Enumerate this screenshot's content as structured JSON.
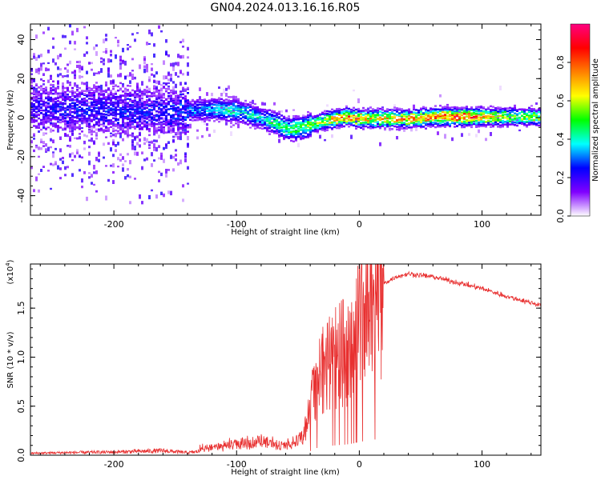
{
  "title": "GN04.2024.013.16.16.R05",
  "chart_data": [
    {
      "type": "heatmap",
      "xlabel": "Height of straight line (km)",
      "ylabel": "Frequency (Hz)",
      "xlim": [
        -268,
        148
      ],
      "ylim": [
        -50,
        48
      ],
      "xticks": [
        -200,
        -100,
        0,
        100
      ],
      "xtick_labels": [
        "-200",
        "-100",
        "0",
        "100"
      ],
      "yticks": [
        -40,
        -20,
        0,
        20,
        40
      ],
      "ytick_labels": [
        "-40",
        "-20",
        "0",
        "20",
        "40"
      ],
      "trace": {
        "x": [
          -268,
          -240,
          -200,
          -160,
          -140,
          -120,
          -100,
          -80,
          -70,
          -60,
          -50,
          -40,
          -30,
          -20,
          -10,
          0,
          20,
          40,
          60,
          80,
          100,
          120,
          148
        ],
        "center_freq": [
          6,
          6,
          5,
          4,
          4,
          5,
          4,
          0,
          -2,
          -5,
          -5,
          -3,
          -1,
          0,
          1,
          0,
          0,
          0,
          1,
          1,
          1,
          1,
          1
        ],
        "amplitude": [
          0.25,
          0.3,
          0.3,
          0.3,
          0.35,
          0.45,
          0.5,
          0.45,
          0.55,
          0.6,
          0.6,
          0.65,
          0.7,
          0.85,
          0.9,
          0.85,
          0.8,
          0.85,
          0.95,
          0.98,
          0.9,
          0.7,
          0.65
        ]
      },
      "colorbar": {
        "label": "Normalized spectral amplitude",
        "range": [
          0,
          1
        ],
        "ticks": [
          0.0,
          0.2,
          0.4,
          0.6,
          0.8
        ],
        "tick_labels": [
          "0.0",
          "0.2",
          "0.4",
          "0.6",
          "0.8"
        ],
        "colormap": [
          "#ffffff",
          "#8000ff",
          "#0000ff",
          "#00ffff",
          "#00ff00",
          "#ffff00",
          "#ff8000",
          "#ff0000",
          "#ff0080"
        ]
      }
    },
    {
      "type": "line",
      "xlabel": "Height of straight line (km)",
      "ylabel": "SNR (10 * v/v)",
      "scale_label": "(x10",
      "scale_exp": "4",
      "scale_close": ")",
      "xlim": [
        -268,
        148
      ],
      "ylim": [
        0,
        1.95
      ],
      "xticks": [
        -200,
        -100,
        0,
        100
      ],
      "xtick_labels": [
        "-200",
        "-100",
        "0",
        "100"
      ],
      "yticks": [
        0.0,
        0.5,
        1.0,
        1.5
      ],
      "ytick_labels": [
        "0.0",
        "0.5",
        "1.0",
        "1.5"
      ],
      "color": "#e83030",
      "envelope": {
        "x": [
          -268,
          -240,
          -200,
          -160,
          -140,
          -120,
          -100,
          -80,
          -60,
          -50,
          -40,
          -38,
          -30,
          -20,
          -10,
          -5,
          0,
          10,
          20,
          30,
          40,
          60,
          80,
          100,
          120,
          148
        ],
        "y": [
          0.03,
          0.04,
          0.05,
          0.07,
          0.04,
          0.08,
          0.15,
          0.18,
          0.12,
          0.2,
          0.4,
          0.65,
          0.85,
          1.0,
          1.1,
          1.2,
          1.35,
          1.55,
          1.75,
          1.82,
          1.85,
          1.82,
          1.76,
          1.7,
          1.62,
          1.53
        ]
      }
    }
  ]
}
